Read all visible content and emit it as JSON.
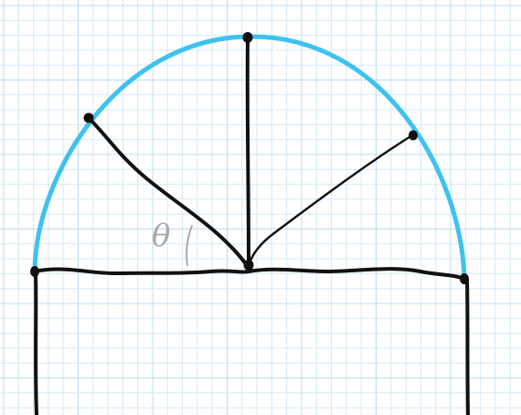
{
  "diagram": {
    "angle_label": "θ",
    "colors": {
      "background": "#ffffff",
      "grid_minor": "#d4e9f7",
      "grid_major": "#bcdcf1",
      "arc": "#3ec2ef",
      "ink": "#111111",
      "pencil": "#a9a9a9"
    }
  }
}
